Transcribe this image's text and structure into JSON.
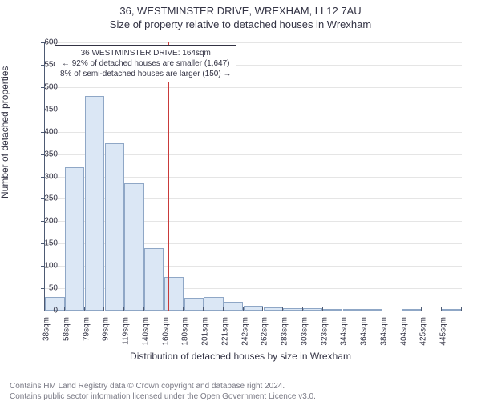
{
  "title_main": "36, WESTMINSTER DRIVE, WREXHAM, LL12 7AU",
  "title_sub": "Size of property relative to detached houses in Wrexham",
  "ylabel": "Number of detached properties",
  "xlabel": "Distribution of detached houses by size in Wrexham",
  "footer_line1": "Contains HM Land Registry data © Crown copyright and database right 2024.",
  "footer_line2": "Contains public sector information licensed under the Open Government Licence v3.0.",
  "annotation": {
    "line1": "36 WESTMINSTER DRIVE: 164sqm",
    "line2": "← 92% of detached houses are smaller (1,647)",
    "line3": "8% of semi-detached houses are larger (150) →"
  },
  "chart": {
    "type": "histogram",
    "ylim": [
      0,
      600
    ],
    "ytick_step": 50,
    "background_color": "#ffffff",
    "grid_color": "#e5e5e5",
    "axis_color": "#4d5a73",
    "bar_fill": "#dbe7f5",
    "bar_border": "#8fa7c6",
    "ref_line_color": "#c93a3a",
    "ref_line_x_sqm": 164,
    "x_start_sqm": 38,
    "x_bin_sqm": 20.35,
    "categories": [
      "38sqm",
      "58sqm",
      "79sqm",
      "99sqm",
      "119sqm",
      "140sqm",
      "160sqm",
      "180sqm",
      "201sqm",
      "221sqm",
      "242sqm",
      "262sqm",
      "283sqm",
      "303sqm",
      "323sqm",
      "344sqm",
      "364sqm",
      "384sqm",
      "404sqm",
      "425sqm",
      "445sqm"
    ],
    "values": [
      30,
      320,
      480,
      375,
      285,
      140,
      75,
      28,
      30,
      20,
      10,
      8,
      5,
      5,
      3,
      2,
      2,
      0,
      2,
      0,
      2
    ],
    "title_fontsize": 13,
    "label_fontsize": 12,
    "tick_fontsize": 10
  }
}
